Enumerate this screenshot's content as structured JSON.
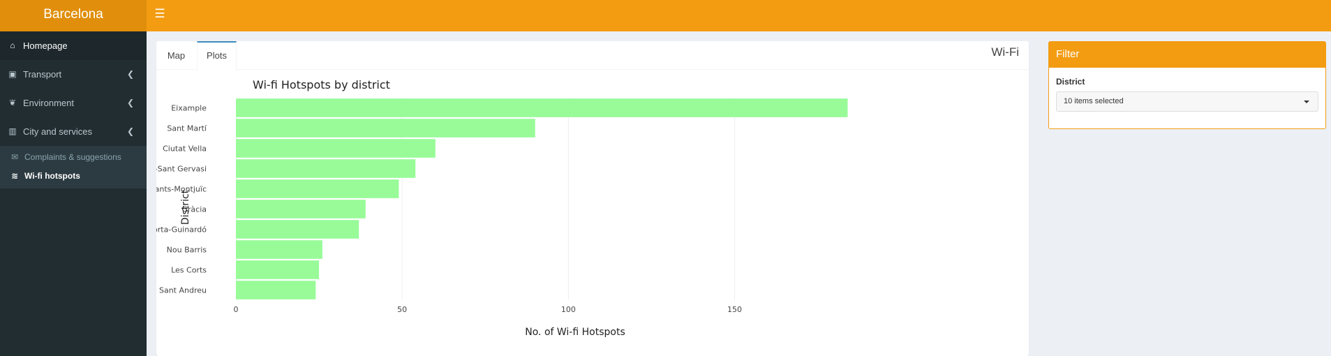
{
  "app": {
    "title": "Barcelona"
  },
  "header": {
    "menu_icon": "hamburger-icon"
  },
  "sidebar": {
    "items": [
      {
        "label": "Homepage",
        "icon": "home-icon",
        "glyph": "⌂"
      },
      {
        "label": "Transport",
        "icon": "bus-icon",
        "glyph": "▣"
      },
      {
        "label": "Environment",
        "icon": "leaf-icon",
        "glyph": "❦"
      },
      {
        "label": "City and services",
        "icon": "building-icon",
        "glyph": "▥"
      }
    ],
    "subitems": [
      {
        "label": "Complaints & suggestions",
        "icon": "envelope-icon",
        "glyph": "✉"
      },
      {
        "label": "Wi-fi hotspots",
        "icon": "wifi-icon",
        "glyph": "≋"
      }
    ]
  },
  "main": {
    "tabs": [
      {
        "label": "Map"
      },
      {
        "label": "Plots"
      }
    ],
    "title": "Wi-Fi"
  },
  "filter": {
    "title": "Filter",
    "district_label": "District",
    "district_value": "10 items selected"
  },
  "colors": {
    "bar": "#98fb98",
    "accent": "#f39c12"
  },
  "chart_data": {
    "type": "bar",
    "orientation": "horizontal",
    "title": "Wi-fi Hotspots by district",
    "xlabel": "No. of Wi-fi Hotspots",
    "ylabel": "District",
    "categories": [
      "Eixample",
      "Sant Martí",
      "Ciutat Vella",
      "Sarrià-Sant Gervasi",
      "Sants-Montjuïc",
      "Gràcia",
      "Horta-Guinardó",
      "Nou Barris",
      "Les Corts",
      "Sant Andreu"
    ],
    "values": [
      184,
      90,
      60,
      54,
      49,
      39,
      37,
      26,
      25,
      24
    ],
    "xlim": [
      0,
      186
    ],
    "xticks": [
      0,
      50,
      100,
      150
    ],
    "grid": true
  }
}
